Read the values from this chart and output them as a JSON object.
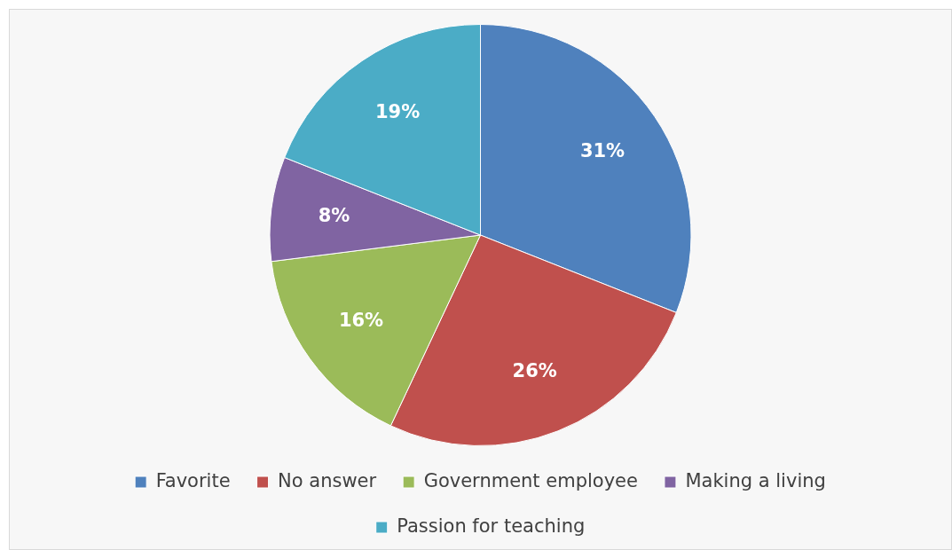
{
  "chart_data": {
    "type": "pie",
    "categories": [
      "Favorite",
      "No answer",
      "Government employee",
      "Making a living",
      "Passion for teaching"
    ],
    "values": [
      31,
      26,
      16,
      8,
      19
    ],
    "colors": [
      "#4f81bd",
      "#c0504d",
      "#9bbb59",
      "#8064a2",
      "#4bacc6"
    ],
    "value_labels": [
      "31%",
      "26%",
      "16%",
      "8%",
      "19%"
    ],
    "legend": "bottom"
  }
}
